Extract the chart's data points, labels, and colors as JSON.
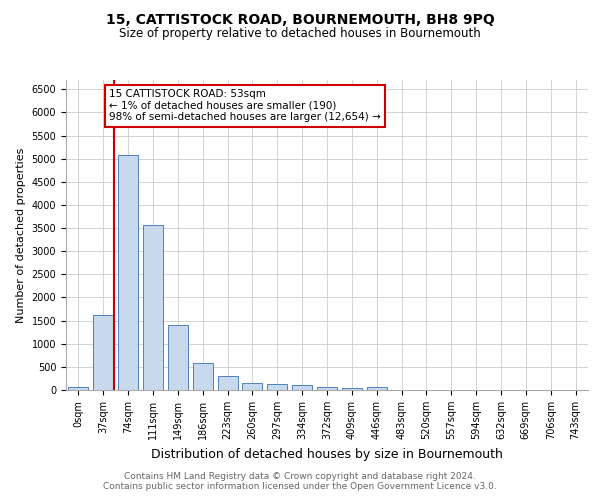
{
  "title": "15, CATTISTOCK ROAD, BOURNEMOUTH, BH8 9PQ",
  "subtitle": "Size of property relative to detached houses in Bournemouth",
  "xlabel": "Distribution of detached houses by size in Bournemouth",
  "ylabel": "Number of detached properties",
  "footnote1": "Contains HM Land Registry data © Crown copyright and database right 2024.",
  "footnote2": "Contains public sector information licensed under the Open Government Licence v3.0.",
  "categories": [
    "0sqm",
    "37sqm",
    "74sqm",
    "111sqm",
    "149sqm",
    "186sqm",
    "223sqm",
    "260sqm",
    "297sqm",
    "334sqm",
    "372sqm",
    "409sqm",
    "446sqm",
    "483sqm",
    "520sqm",
    "557sqm",
    "594sqm",
    "632sqm",
    "669sqm",
    "706sqm",
    "743sqm"
  ],
  "values": [
    75,
    1620,
    5080,
    3560,
    1400,
    590,
    300,
    155,
    130,
    100,
    55,
    40,
    60,
    0,
    0,
    0,
    0,
    0,
    0,
    0,
    0
  ],
  "bar_color": "#c9d9ed",
  "bar_edge_color": "#4f81bd",
  "background_color": "#ffffff",
  "grid_color": "#cccccc",
  "annotation_box_text": "15 CATTISTOCK ROAD: 53sqm\n← 1% of detached houses are smaller (190)\n98% of semi-detached houses are larger (12,654) →",
  "annotation_box_color": "#cc0000",
  "red_line_x": 1.43,
  "ylim": [
    0,
    6700
  ],
  "yticks": [
    0,
    500,
    1000,
    1500,
    2000,
    2500,
    3000,
    3500,
    4000,
    4500,
    5000,
    5500,
    6000,
    6500
  ],
  "annotation_fontsize": 7.5,
  "title_fontsize": 10,
  "subtitle_fontsize": 8.5,
  "xlabel_fontsize": 9,
  "ylabel_fontsize": 8,
  "tick_fontsize": 7,
  "footnote_fontsize": 6.5
}
